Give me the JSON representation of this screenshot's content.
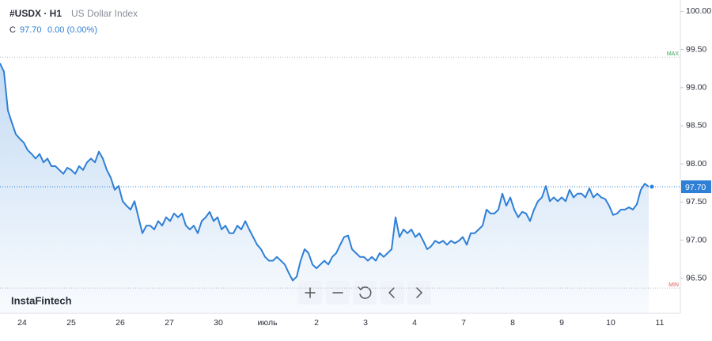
{
  "chart_data": {
    "type": "line",
    "symbol": "#USDX · H1",
    "title": "US Dollar Index",
    "close_prefix": "C",
    "close": {
      "value": 97.7,
      "label": "97.70"
    },
    "change": "0.00 (0.00%)",
    "brand": "InstaFintech",
    "color": "#2e7fd6",
    "values": [
      99.32,
      99.21,
      98.7,
      98.54,
      98.39,
      98.33,
      98.28,
      98.18,
      98.13,
      98.07,
      98.13,
      98.02,
      98.07,
      97.97,
      97.97,
      97.92,
      97.87,
      97.95,
      97.92,
      97.87,
      97.97,
      97.92,
      98.02,
      98.07,
      98.02,
      98.16,
      98.07,
      97.92,
      97.82,
      97.66,
      97.71,
      97.51,
      97.45,
      97.4,
      97.51,
      97.3,
      97.09,
      97.19,
      97.19,
      97.14,
      97.25,
      97.19,
      97.3,
      97.25,
      97.35,
      97.3,
      97.35,
      97.19,
      97.14,
      97.19,
      97.09,
      97.25,
      97.3,
      97.37,
      97.25,
      97.3,
      97.14,
      97.19,
      97.09,
      97.09,
      97.19,
      97.14,
      97.25,
      97.14,
      97.04,
      96.94,
      96.88,
      96.78,
      96.73,
      96.73,
      96.78,
      96.73,
      96.68,
      96.57,
      96.47,
      96.52,
      96.73,
      96.88,
      96.83,
      96.68,
      96.63,
      96.68,
      96.73,
      96.68,
      96.78,
      96.83,
      96.94,
      97.04,
      97.06,
      96.88,
      96.83,
      96.78,
      96.78,
      96.73,
      96.78,
      96.73,
      96.83,
      96.78,
      96.83,
      96.88,
      97.3,
      97.04,
      97.14,
      97.09,
      97.14,
      97.04,
      97.09,
      96.99,
      96.88,
      96.92,
      96.99,
      96.96,
      96.99,
      96.94,
      96.99,
      96.96,
      96.99,
      97.04,
      96.94,
      97.09,
      97.09,
      97.14,
      97.19,
      97.4,
      97.35,
      97.35,
      97.4,
      97.61,
      97.45,
      97.56,
      97.4,
      97.3,
      97.37,
      97.35,
      97.25,
      97.4,
      97.51,
      97.56,
      97.71,
      97.51,
      97.56,
      97.51,
      97.56,
      97.51,
      97.66,
      97.56,
      97.61,
      97.61,
      97.56,
      97.68,
      97.56,
      97.61,
      97.56,
      97.54,
      97.45,
      97.33,
      97.35,
      97.4,
      97.4,
      97.43,
      97.4,
      97.47,
      97.66,
      97.74,
      97.7
    ],
    "last_price": {
      "value": 97.7,
      "label": "97.70"
    },
    "max_line": {
      "label": "MAX",
      "value": 99.4
    },
    "min_line": {
      "label": "MIN",
      "value": 96.37
    },
    "x_labels": [
      "24",
      "25",
      "26",
      "27",
      "30",
      "июль",
      "2",
      "3",
      "4",
      "7",
      "8",
      "9",
      "10",
      "11"
    ],
    "ylim": [
      96.05,
      100.15
    ],
    "yticks": [
      {
        "value": 96.5,
        "label": "96.50"
      },
      {
        "value": 97,
        "label": "97.00"
      },
      {
        "value": 97.5,
        "label": "97.50"
      },
      {
        "value": 98,
        "label": "98.00"
      },
      {
        "value": 98.5,
        "label": "98.50"
      },
      {
        "value": 99,
        "label": "99.00"
      },
      {
        "value": 99.5,
        "label": "99.50"
      },
      {
        "value": 100,
        "label": "100.00"
      }
    ]
  }
}
